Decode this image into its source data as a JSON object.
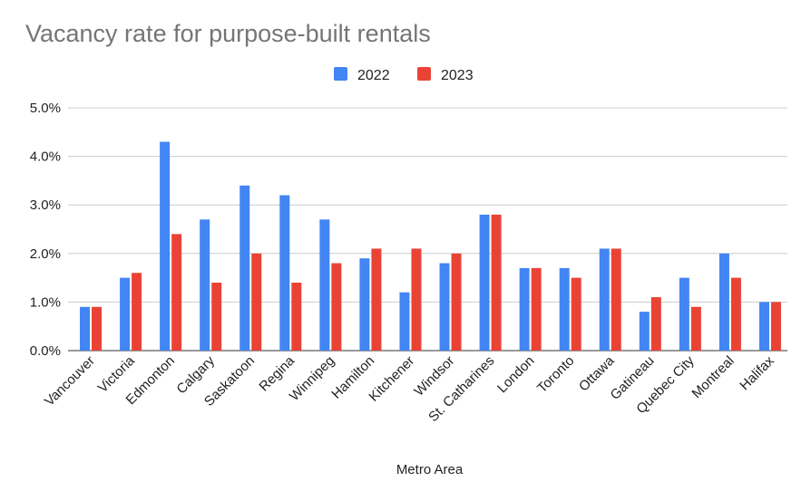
{
  "chart_data": {
    "type": "bar",
    "title": "Vacancy rate for purpose-built rentals",
    "xlabel": "Metro Area",
    "ylabel": "",
    "ylim": [
      0,
      5
    ],
    "yticks": [
      0,
      1,
      2,
      3,
      4,
      5
    ],
    "ytick_labels": [
      "0.0%",
      "1.0%",
      "2.0%",
      "3.0%",
      "4.0%",
      "5.0%"
    ],
    "grid": true,
    "legend_position": "top",
    "categories": [
      "Vancouver",
      "Victoria",
      "Edmonton",
      "Calgary",
      "Saskatoon",
      "Regina",
      "Winnipeg",
      "Hamilton",
      "Kitchener",
      "Windsor",
      "St. Catharines",
      "London",
      "Toronto",
      "Ottawa",
      "Gatineau",
      "Quebec City",
      "Montreal",
      "Halifax"
    ],
    "series": [
      {
        "name": "2022",
        "color": "#4285f4",
        "values": [
          0.9,
          1.5,
          4.3,
          2.7,
          3.4,
          3.2,
          2.7,
          1.9,
          1.2,
          1.8,
          2.8,
          1.7,
          1.7,
          2.1,
          0.8,
          1.5,
          2.0,
          1.0
        ]
      },
      {
        "name": "2023",
        "color": "#ea4335",
        "values": [
          0.9,
          1.6,
          2.4,
          1.4,
          2.0,
          1.4,
          1.8,
          2.1,
          2.1,
          2.0,
          2.8,
          1.7,
          1.5,
          2.1,
          1.1,
          0.9,
          1.5,
          1.0
        ]
      }
    ]
  }
}
